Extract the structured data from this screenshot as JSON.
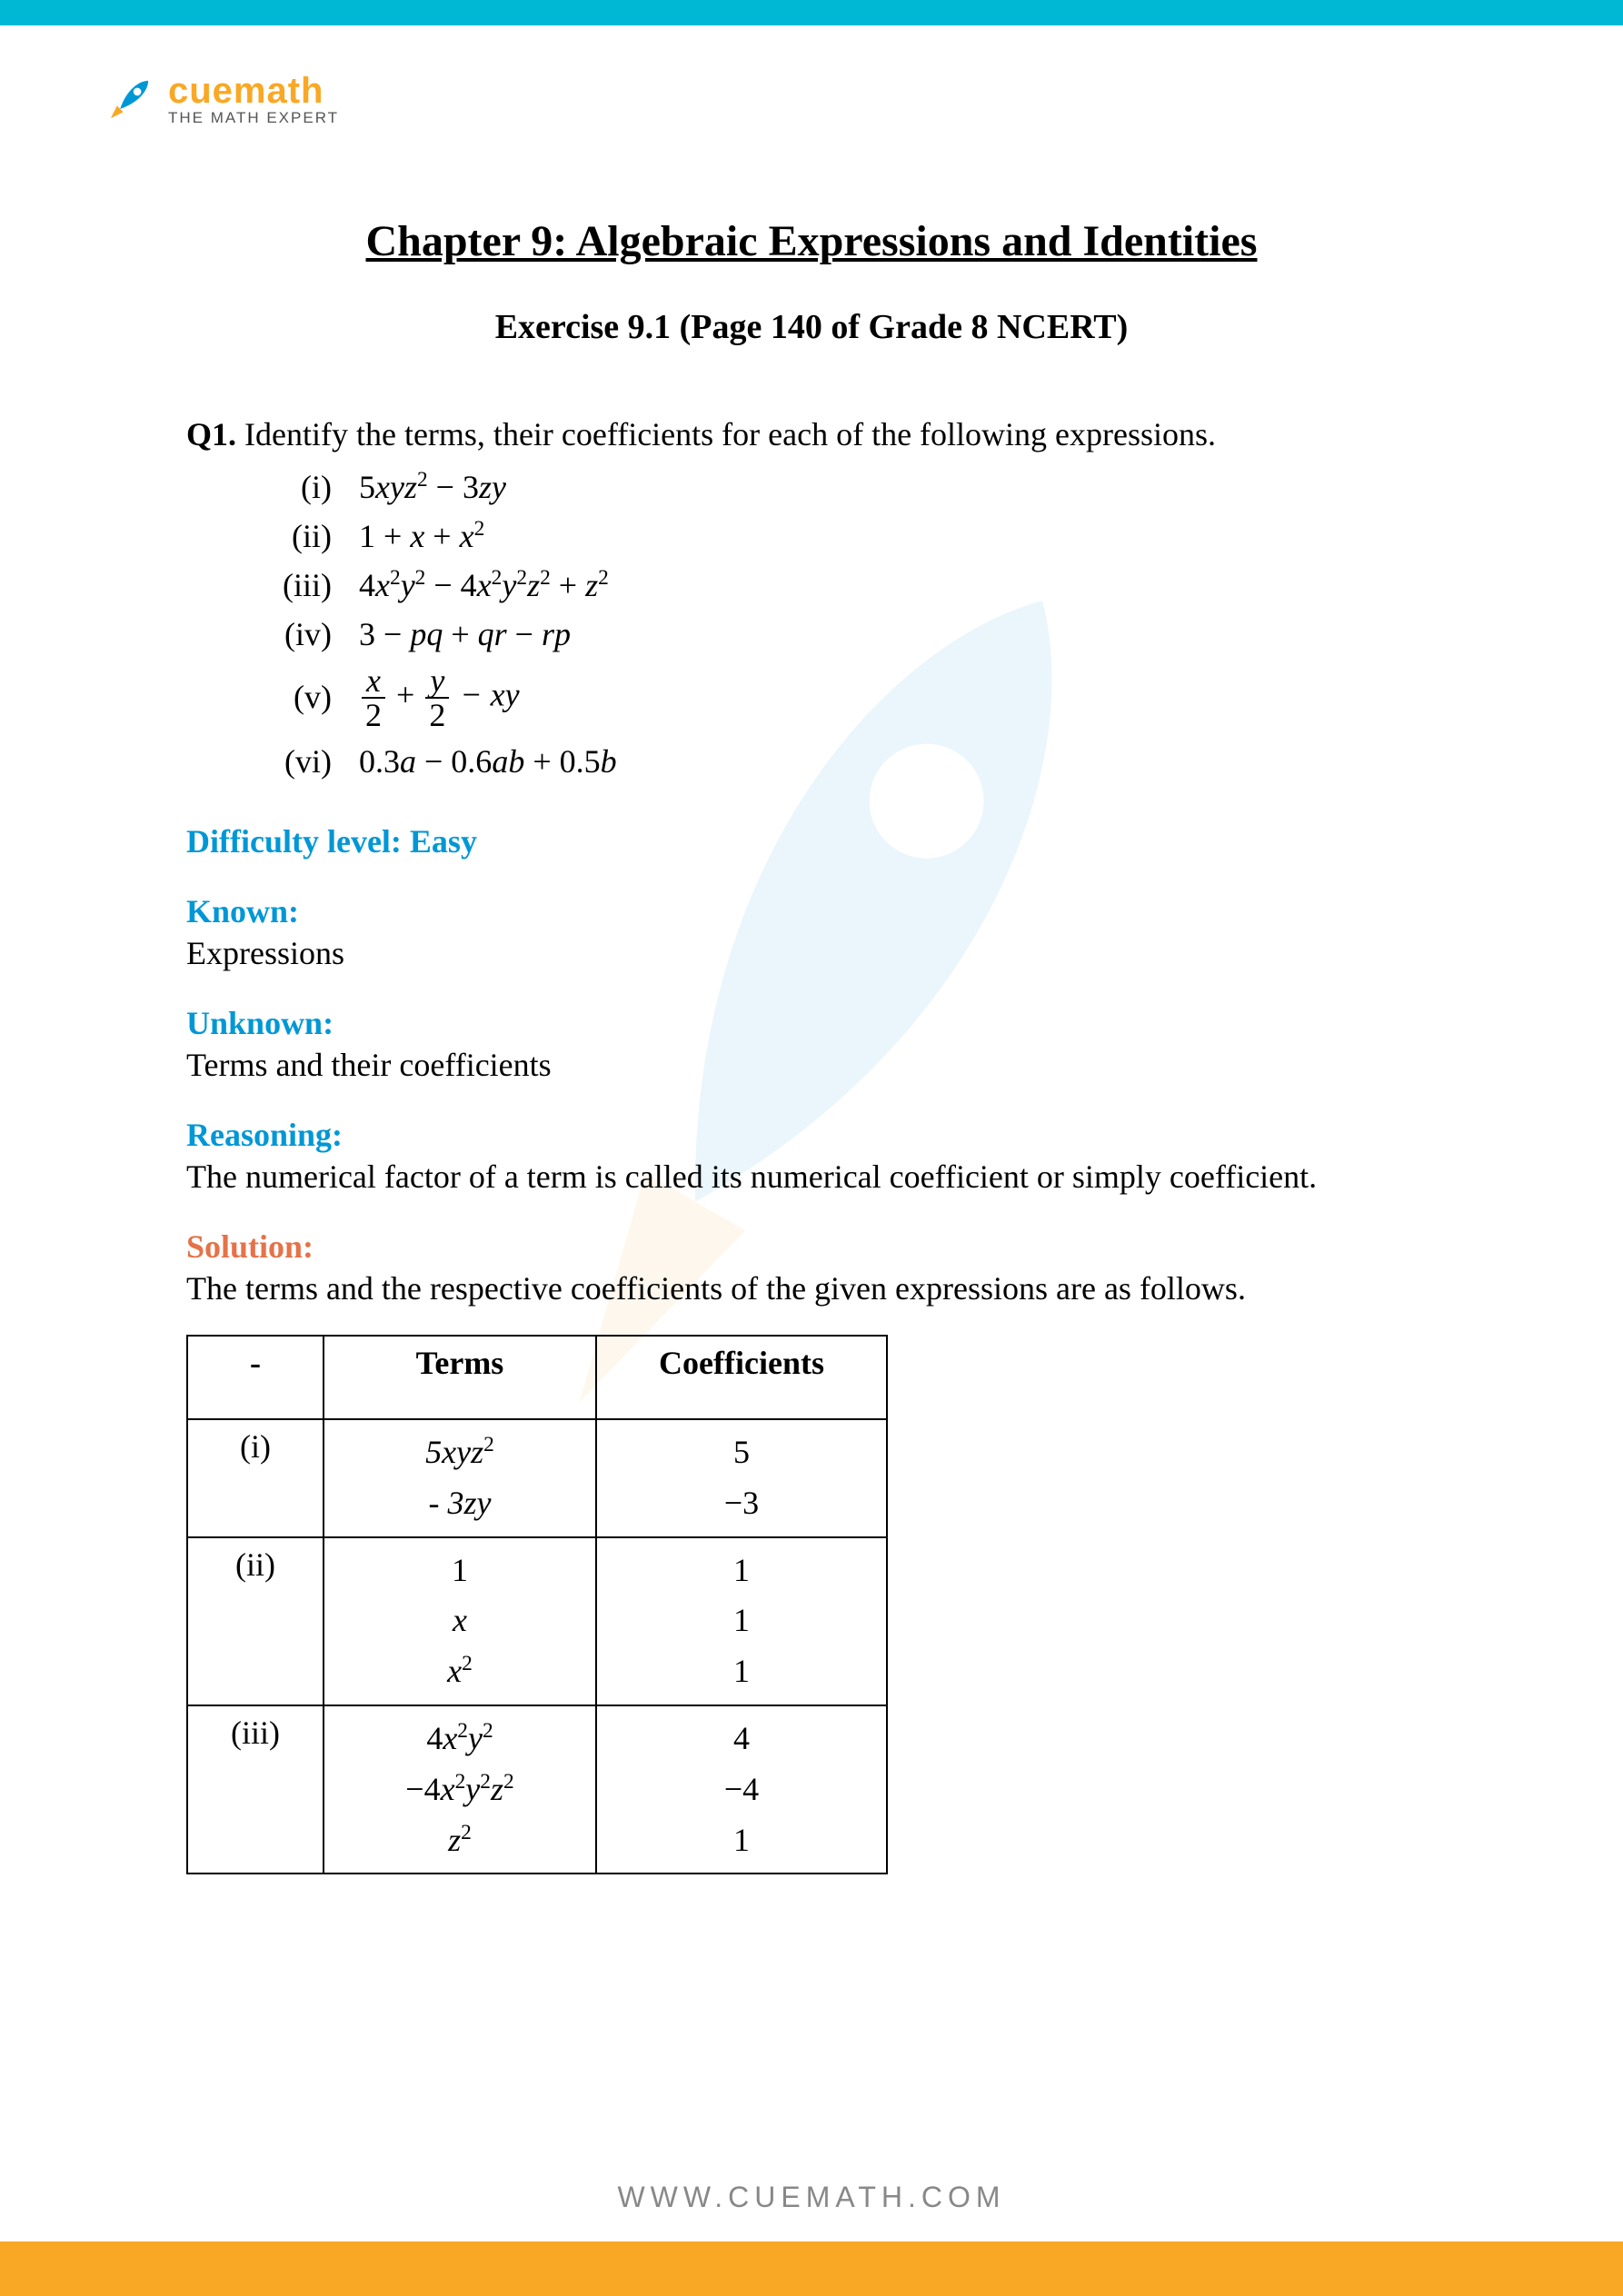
{
  "brand": {
    "name": "cuemath",
    "tagline": "THE MATH EXPERT",
    "color": "#f9a825"
  },
  "chapter_title": "Chapter 9: Algebraic Expressions and Identities",
  "exercise_line": "Exercise 9.1 (Page 140 of Grade 8 NCERT)",
  "question": {
    "number": "Q1.",
    "text": "Identify the terms, their coefficients for each of the following expressions."
  },
  "expressions": {
    "i": {
      "roman": "(i)",
      "html": "5<span class='italic'>xyz</span><sup>2</sup> − 3<span class='italic'>zy</span>"
    },
    "ii": {
      "roman": "(ii)",
      "html": "1 + <span class='italic'>x</span> + <span class='italic'>x</span><sup>2</sup>"
    },
    "iii": {
      "roman": "(iii)",
      "html": "4<span class='italic'>x</span><sup>2</sup><span class='italic'>y</span><sup>2</sup> − 4<span class='italic'>x</span><sup>2</sup><span class='italic'>y</span><sup>2</sup><span class='italic'>z</span><sup>2</sup> + <span class='italic'>z</span><sup>2</sup>"
    },
    "iv": {
      "roman": "(iv)",
      "html": "3 − <span class='italic'>pq</span> + <span class='italic'>qr</span> − <span class='italic'>rp</span>"
    },
    "v": {
      "roman": "(v)",
      "x_num": "x",
      "y_num": "y",
      "den": "2",
      "tail": " − xy"
    },
    "vi": {
      "roman": "(vi)",
      "html": "0.3<span class='italic'>a</span> − 0.6<span class='italic'>ab</span> + 0.5<span class='italic'>b</span>"
    }
  },
  "difficulty": {
    "label": "Difficulty level:  Easy"
  },
  "known": {
    "label": "Known:",
    "text": "Expressions"
  },
  "unknown": {
    "label": "Unknown:",
    "text": "Terms and their coefficients"
  },
  "reasoning": {
    "label": "Reasoning:",
    "text": "The numerical factor of a term is called its numerical coefficient or simply coefficient."
  },
  "solution": {
    "label": "Solution:",
    "text": "The terms and the respective coefficients of the given expressions are as follows."
  },
  "table": {
    "headers": {
      "idx": "-",
      "terms": "Terms",
      "coef": "Coefficients"
    },
    "rows": [
      {
        "idx": "(i)",
        "terms": [
          "5<i>xyz</i><sup>2</sup>",
          "- 3<i>zy</i>"
        ],
        "coef": [
          "5",
          "−3"
        ]
      },
      {
        "idx": "(ii)",
        "terms": [
          "<span class='nrm'>1</span>",
          "x",
          "x<sup><span class='nrm'>2</span></sup>"
        ],
        "coef": [
          "1",
          "1",
          "1"
        ]
      },
      {
        "idx": "(iii)",
        "terms": [
          "<span class='nrm'>4</span>x<sup><span class='nrm'>2</span></sup>y<sup><span class='nrm'>2</span></sup>",
          "<span class='nrm'>−4</span>x<sup><span class='nrm'>2</span></sup>y<sup><span class='nrm'>2</span></sup>z<sup><span class='nrm'>2</span></sup>",
          "z<sup><span class='nrm'>2</span></sup>"
        ],
        "coef": [
          "4",
          "−4",
          "1"
        ]
      }
    ]
  },
  "footer_url": "WWW.CUEMATH.COM",
  "colors": {
    "top_bar": "#00b8d4",
    "bottom_bar": "#f9a825",
    "label_blue": "#0097d6",
    "label_orange": "#e57248",
    "text": "#000000",
    "footer": "#888888"
  }
}
